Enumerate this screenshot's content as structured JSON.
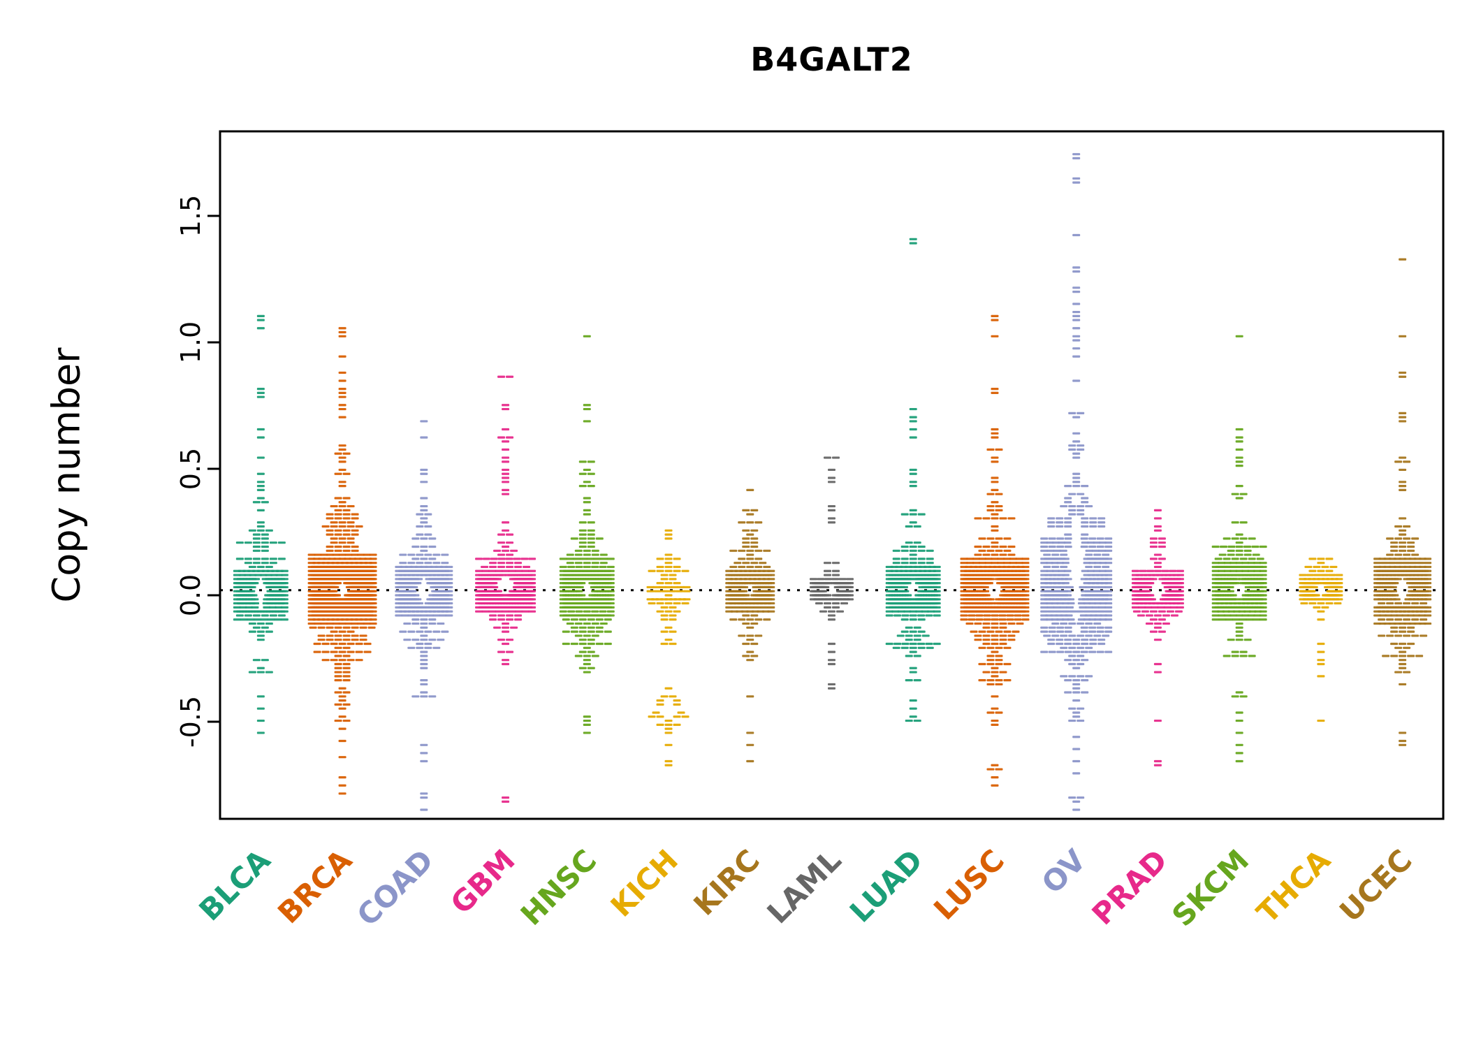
{
  "chart_data": {
    "type": "scatter",
    "variant": "beeswarm",
    "title": "B4GALT2",
    "xlabel": "",
    "ylabel": "Copy number",
    "ylim": [
      -0.9,
      1.8
    ],
    "center": 0.02,
    "reference_line": 0.02,
    "grid": false,
    "yticks": [
      -0.5,
      0.0,
      0.5,
      1.0,
      1.5
    ],
    "ytick_labels": [
      "-0.5",
      "0.0",
      "0.5",
      "1.0",
      "1.5"
    ],
    "categories": [
      "BLCA",
      "BRCA",
      "COAD",
      "GBM",
      "HNSC",
      "KICH",
      "KIRC",
      "LAML",
      "LUAD",
      "LUSC",
      "OV",
      "PRAD",
      "SKCM",
      "THCA",
      "UCEC"
    ],
    "series": [
      {
        "name": "BLCA",
        "color": "#1B9E77",
        "n": 260,
        "sd_core": 0.055,
        "sd_wide": 0.2,
        "cap": 34,
        "outliers": [
          1.1,
          1.08,
          1.05,
          0.82,
          0.8,
          0.78,
          0.65,
          0.62,
          0.48,
          0.45,
          -0.45,
          -0.5,
          -0.55
        ],
        "hole": {
          "center": 0.02,
          "h": 0.07,
          "w": 14
        }
      },
      {
        "name": "BRCA",
        "color": "#D95F02",
        "n": 700,
        "sd_core": 0.06,
        "sd_wide": 0.25,
        "cap": 44,
        "outliers": [
          1.05,
          1.04,
          1.02,
          0.95,
          0.88,
          0.85,
          0.82,
          0.8,
          0.78,
          0.75,
          0.73,
          0.7,
          -0.72,
          -0.75,
          -0.78
        ],
        "hole": {
          "center": 0.02,
          "h": 0.05,
          "w": 12
        }
      },
      {
        "name": "COAD",
        "color": "#8B95C9",
        "n": 300,
        "sd_core": 0.06,
        "sd_wide": 0.22,
        "cap": 36,
        "outliers": [
          0.5,
          0.48,
          0.45,
          -0.6,
          -0.62,
          -0.65,
          -0.78,
          -0.8,
          -0.85
        ],
        "hole": {
          "center": 0.02,
          "h": 0.06,
          "w": 16
        }
      },
      {
        "name": "GBM",
        "color": "#E7298A",
        "n": 380,
        "sd_core": 0.035,
        "sd_wide": 0.1,
        "cap": 38,
        "outliers": [
          0.87,
          0.86,
          0.75,
          0.73,
          0.65,
          0.63,
          0.62,
          0.6,
          0.58,
          0.55,
          0.52,
          0.5,
          0.48,
          0.46,
          0.44,
          0.42,
          0.4,
          -0.2,
          -0.22,
          -0.25,
          -0.27,
          -0.8,
          -0.82
        ],
        "hole": {
          "center": 0.04,
          "h": 0.05,
          "w": 18
        }
      },
      {
        "name": "HNSC",
        "color": "#66A61E",
        "n": 300,
        "sd_core": 0.07,
        "sd_wide": 0.2,
        "cap": 34,
        "outliers": [
          1.03,
          0.75,
          0.73,
          0.68,
          0.53,
          0.5,
          0.48,
          -0.5,
          -0.52,
          -0.55
        ],
        "hole": {
          "center": 0.02,
          "h": 0.05,
          "w": 10
        }
      },
      {
        "name": "KICH",
        "color": "#E6AB02",
        "n": 60,
        "sd_core": 0.06,
        "sd_wide": 0.12,
        "cap": 26,
        "outliers": [
          0.25,
          0.22,
          0.15,
          0.12,
          -0.15,
          -0.18,
          -0.6,
          -0.65,
          -0.68
        ],
        "clusters": [
          {
            "center": -0.44,
            "sd": 0.05,
            "n": 26
          }
        ],
        "hole": {
          "center": -0.44,
          "h": 0.05,
          "w": 12
        }
      },
      {
        "name": "KIRC",
        "color": "#A6761D",
        "n": 220,
        "sd_core": 0.05,
        "sd_wide": 0.15,
        "cap": 30,
        "outliers": [
          0.41,
          0.2,
          0.18,
          -0.4,
          -0.55,
          -0.6,
          -0.65
        ],
        "hole": {
          "center": 0.02,
          "h": 0.04,
          "w": 10
        }
      },
      {
        "name": "LAML",
        "color": "#666666",
        "n": 140,
        "sd_core": 0.02,
        "sd_wide": 0.05,
        "cap": 26,
        "outliers": [
          0.55,
          0.54,
          0.5,
          0.46,
          0.45,
          0.35,
          0.33,
          0.3,
          0.29,
          -0.2,
          -0.22,
          -0.25,
          -0.28,
          -0.35,
          -0.37
        ],
        "hole": {
          "center": 0.02,
          "h": 0.035,
          "w": 12
        }
      },
      {
        "name": "LUAD",
        "color": "#1B9E77",
        "n": 300,
        "sd_core": 0.06,
        "sd_wide": 0.18,
        "cap": 34,
        "outliers": [
          1.41,
          1.4,
          0.73,
          0.7,
          0.68,
          0.65,
          0.62,
          0.5,
          0.48,
          0.45,
          -0.45,
          -0.48,
          -0.5
        ],
        "hole": {
          "center": 0.02,
          "h": 0.05,
          "w": 12
        }
      },
      {
        "name": "LUSC",
        "color": "#D95F02",
        "n": 430,
        "sd_core": 0.08,
        "sd_wide": 0.24,
        "cap": 44,
        "outliers": [
          1.1,
          1.08,
          1.02,
          0.82,
          0.8,
          0.57,
          0.55,
          -0.68,
          -0.72,
          -0.75
        ],
        "hole": {
          "center": 0.02,
          "h": 0.06,
          "w": 14
        }
      },
      {
        "name": "OV",
        "color": "#8B95C9",
        "n": 430,
        "sd_core": 0.15,
        "sd_wide": 0.32,
        "cap": 46,
        "outliers": [
          1.75,
          1.72,
          1.65,
          1.63,
          1.42,
          1.3,
          1.28,
          1.22,
          1.2,
          1.15,
          1.12,
          1.1,
          1.08,
          1.05,
          1.02,
          1.0,
          0.98,
          0.95,
          -0.65,
          -0.7,
          -0.8,
          -0.82,
          -0.85
        ],
        "hole": {
          "center": 0.12,
          "h": 0.28,
          "w": 13
        }
      },
      {
        "name": "PRAD",
        "color": "#E7298A",
        "n": 240,
        "sd_core": 0.03,
        "sd_wide": 0.08,
        "cap": 32,
        "outliers": [
          0.33,
          0.3,
          0.27,
          0.25,
          0.22,
          0.2,
          -0.28,
          -0.3,
          -0.5,
          -0.65,
          -0.67
        ],
        "hole": {
          "center": 0.02,
          "h": 0.06,
          "w": 16
        }
      },
      {
        "name": "SKCM",
        "color": "#66A61E",
        "n": 260,
        "sd_core": 0.07,
        "sd_wide": 0.2,
        "cap": 34,
        "outliers": [
          1.02,
          0.65,
          0.63,
          0.6,
          0.58,
          0.55,
          0.52,
          -0.55,
          -0.6,
          -0.62,
          -0.65
        ],
        "hole": {
          "center": 0.02,
          "h": 0.05,
          "w": 12
        }
      },
      {
        "name": "THCA",
        "color": "#E6AB02",
        "n": 170,
        "sd_core": 0.02,
        "sd_wide": 0.05,
        "cap": 26,
        "outliers": [
          0.12,
          0.1,
          0.08,
          -0.2,
          -0.22,
          -0.25,
          -0.28,
          -0.32,
          -0.5
        ],
        "hole": {
          "center": 0.02,
          "h": 0.035,
          "w": 14
        }
      },
      {
        "name": "UCEC",
        "color": "#A6761D",
        "n": 300,
        "sd_core": 0.07,
        "sd_wide": 0.2,
        "cap": 36,
        "outliers": [
          1.32,
          1.02,
          0.88,
          0.86,
          0.72,
          0.7,
          0.68,
          0.55,
          0.52,
          0.5,
          0.45,
          0.42,
          -0.55,
          -0.58,
          -0.6
        ],
        "hole": {
          "center": 0.02,
          "h": 0.06,
          "w": 14
        }
      }
    ]
  }
}
